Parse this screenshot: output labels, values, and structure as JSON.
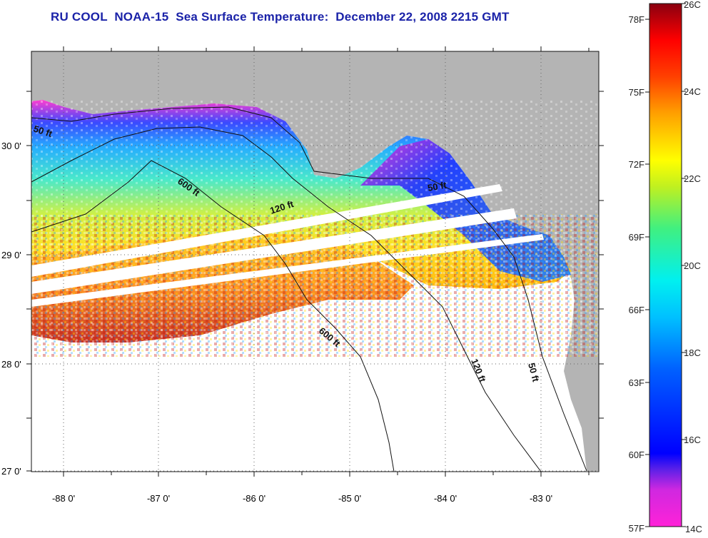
{
  "title": "RU COOL  NOAA-15  Sea Surface Temperature:  December 22, 2008 2215 GMT",
  "colors": {
    "land": "#b4b4b4",
    "ocean_no_data": "#ffffff",
    "title": "#1a22a8"
  },
  "map": {
    "lon_ticks": [
      "-88 0'",
      "-87 0'",
      "-86 0'",
      "-85 0'",
      "-84 0'",
      "-83 0'"
    ],
    "lat_ticks": [
      "30 0'",
      "29 0'",
      "28 0'",
      "27 0'"
    ],
    "contours": [
      {
        "label": "50 ft"
      },
      {
        "label": "600 ft"
      },
      {
        "label": "120 ft"
      },
      {
        "label": "50 ft"
      },
      {
        "label": "600 ft"
      },
      {
        "label": "120 ft"
      },
      {
        "label": "50 ft"
      }
    ]
  },
  "colorbar": {
    "fahrenheit_labels": [
      "78F",
      "75F",
      "72F",
      "69F",
      "66F",
      "63F",
      "60F",
      "57F"
    ],
    "celsius_labels": [
      "26C",
      "24C",
      "22C",
      "20C",
      "18C",
      "16C",
      "14C"
    ],
    "stops": [
      "#ff22d8",
      "#b02ee0",
      "#2b24ea",
      "#0044ff",
      "#1aa6ff",
      "#00e8f0",
      "#38f0a0",
      "#b8f040",
      "#ffff00",
      "#ffc000",
      "#ff7a00",
      "#ff2000",
      "#c00000",
      "#8a0010"
    ]
  }
}
